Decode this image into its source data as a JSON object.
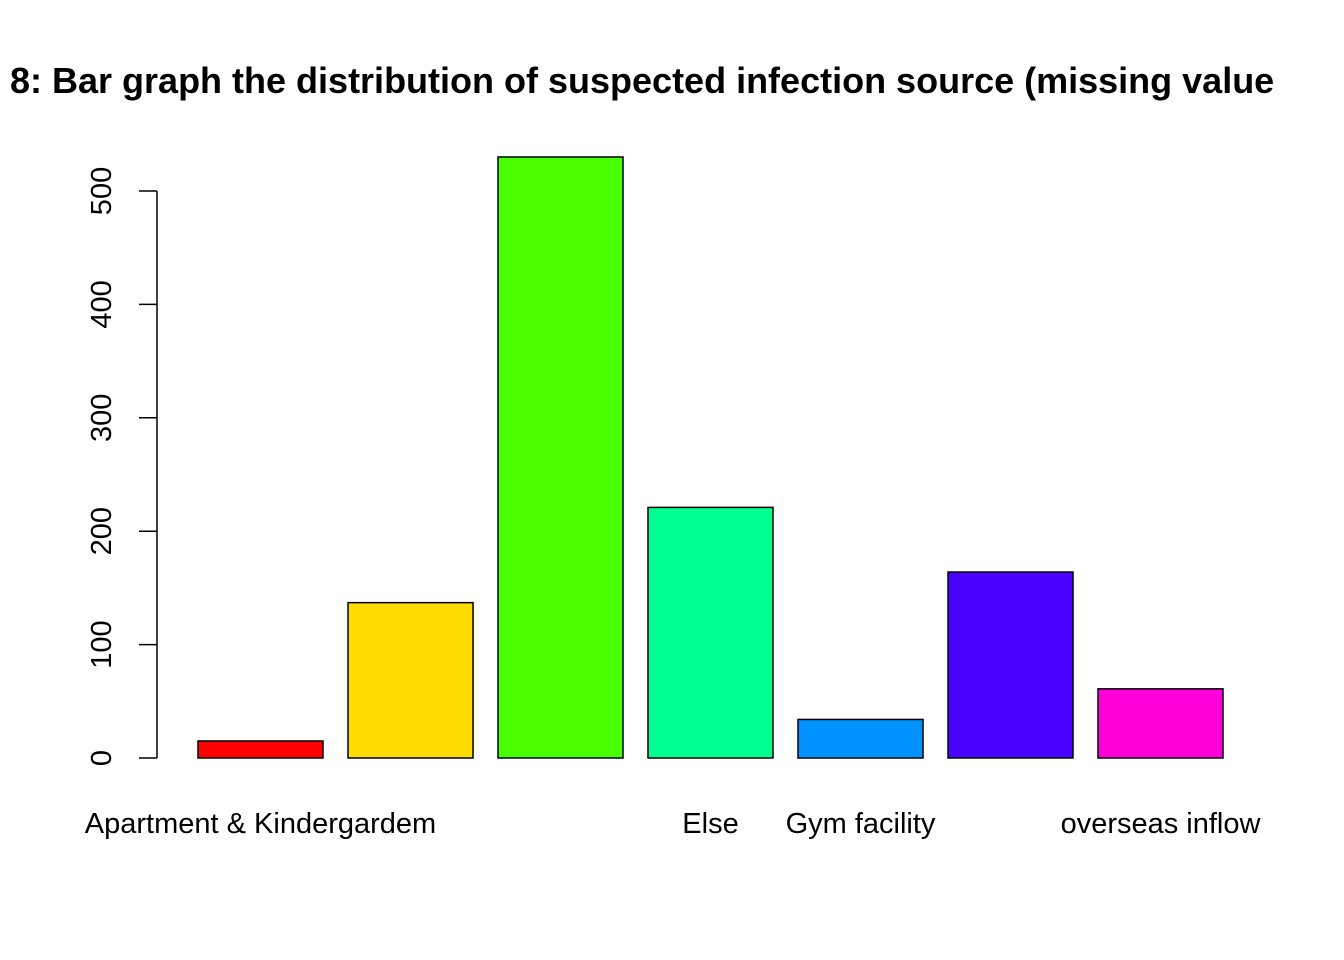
{
  "chart_data": {
    "type": "bar",
    "title": "8: Bar graph the distribution of suspected infection source (missing value",
    "xlabel": "",
    "ylabel": "",
    "ylim": [
      0,
      530
    ],
    "yticks": [
      0,
      100,
      200,
      300,
      400,
      500
    ],
    "categories": [
      "Apartment & Kindergardem",
      "",
      "",
      "Else",
      "Gym facility",
      "",
      "overseas inflow"
    ],
    "values": [
      15,
      137,
      530,
      221,
      34,
      164,
      61
    ],
    "colors": [
      "#ff0000",
      "#ffdb00",
      "#49ff00",
      "#00ff92",
      "#0092ff",
      "#4900ff",
      "#ff00db"
    ],
    "grid": false,
    "legend": "none"
  }
}
